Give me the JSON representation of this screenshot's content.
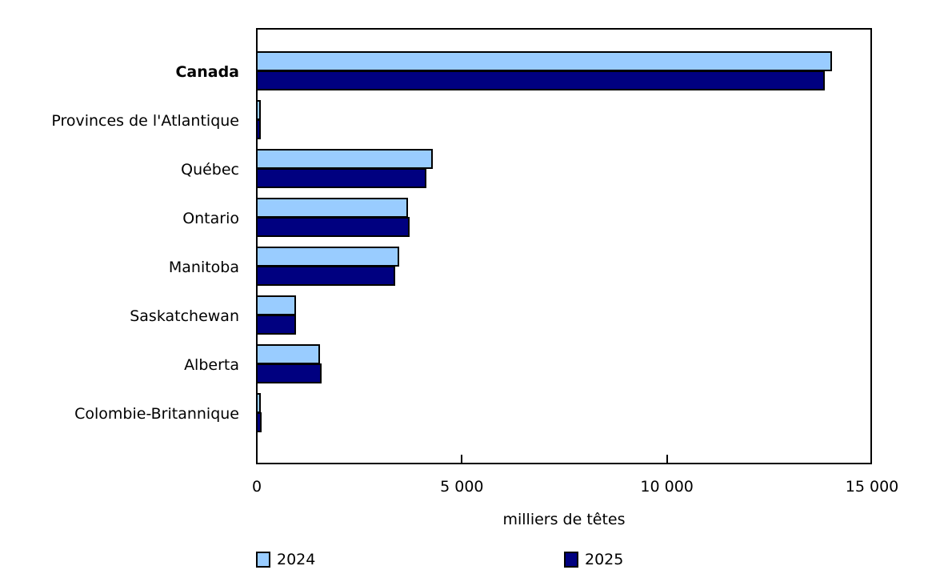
{
  "chart_data": {
    "type": "bar",
    "orientation": "horizontal",
    "title": "",
    "xlabel": "milliers de têtes",
    "ylabel": "",
    "xlim": [
      0,
      15000
    ],
    "x_ticks": [
      0,
      5000,
      10000,
      15000
    ],
    "x_tick_labels": [
      "0",
      "5 000",
      "10 000",
      "15 000"
    ],
    "grid": false,
    "legend_position": "bottom",
    "categories": [
      "Canada",
      "Provinces de l'Atlantique",
      "Québec",
      "Ontario",
      "Manitoba",
      "Saskatchewan",
      "Alberta",
      "Colombie-Britannique"
    ],
    "series": [
      {
        "name": "2024",
        "color": "#99CCFF",
        "values": [
          14000,
          80,
          4270,
          3670,
          3450,
          940,
          1520,
          80
        ]
      },
      {
        "name": "2025",
        "color": "#000080",
        "values": [
          13830,
          70,
          4120,
          3710,
          3360,
          940,
          1560,
          100
        ]
      }
    ]
  }
}
